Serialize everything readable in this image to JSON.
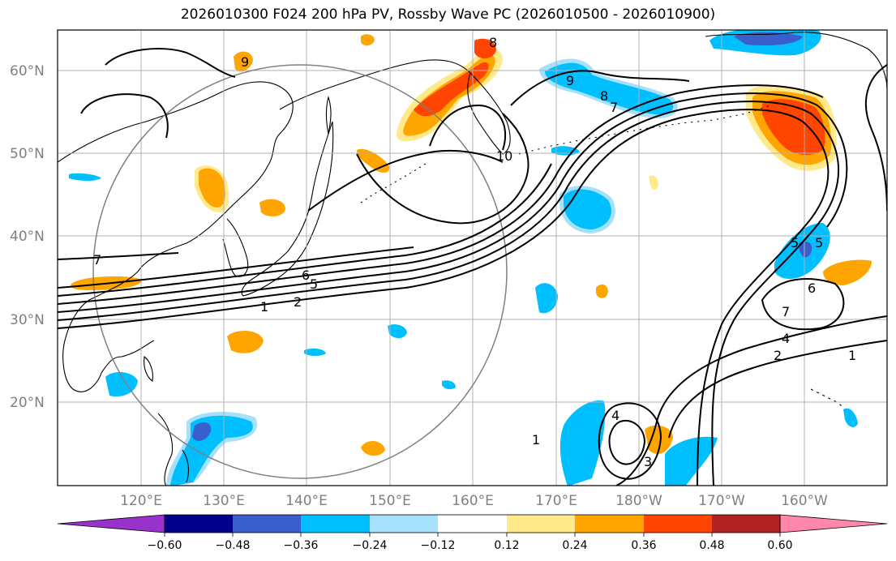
{
  "title": "2026010300 F024 200 hPa PV, Rossby Wave PC (2026010500 - 2026010900)",
  "lat_labels": [
    "60°N",
    "50°N",
    "40°N",
    "30°N",
    "20°N"
  ],
  "lon_labels": [
    "120°E",
    "130°E",
    "140°E",
    "150°E",
    "160°E",
    "170°E",
    "180°W",
    "170°W",
    "160°W"
  ],
  "colorbar": {
    "colors": [
      "#9932cc",
      "#00008b",
      "#3a5fcd",
      "#00bfff",
      "#00bfff",
      "#a6e0fa",
      "#ffffff",
      "#ffe98a",
      "#ffa500",
      "#ff4500",
      "#b22222",
      "#ff88aa"
    ],
    "tick_labels": [
      "−0.60",
      "−0.48",
      "−0.36",
      "−0.24",
      "−0.12",
      "0.12",
      "0.24",
      "0.36",
      "0.48",
      "0.60"
    ]
  },
  "contour_labels": [
    "8",
    "9",
    "9",
    "8",
    "7",
    "10",
    "7",
    "6",
    "5",
    "2",
    "1",
    "5",
    "5",
    "6",
    "7",
    "4",
    "2",
    "1",
    "4",
    "3",
    "1"
  ]
}
